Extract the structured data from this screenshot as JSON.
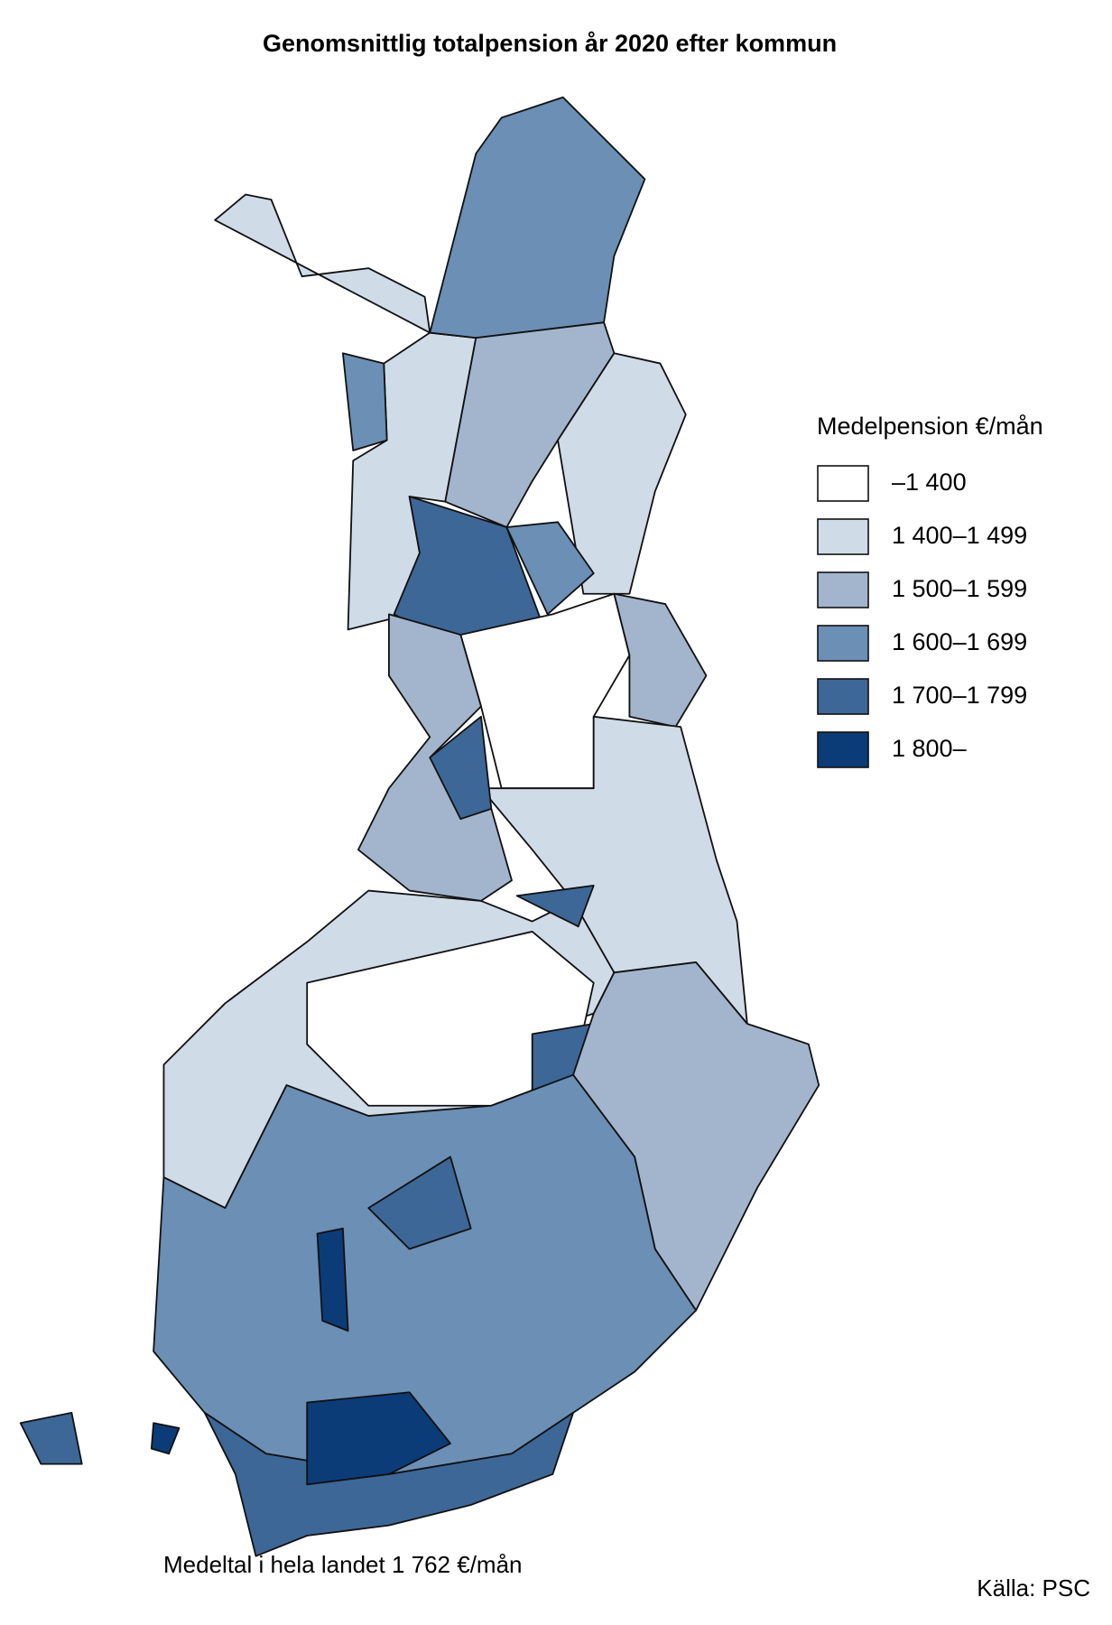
{
  "title": "Genomsnittlig totalpension år 2020 efter kommun",
  "legend": {
    "title": "Medelpension €/mån",
    "items": [
      {
        "label": "–1 400",
        "color": "#ffffff"
      },
      {
        "label": "1 400–1 499",
        "color": "#d0dbe8"
      },
      {
        "label": "1 500–1 599",
        "color": "#a2b5cd"
      },
      {
        "label": "1 600–1 699",
        "color": "#6b8fb5"
      },
      {
        "label": "1 700–1 799",
        "color": "#3d6796"
      },
      {
        "label": "1 800–",
        "color": "#0b3c78"
      }
    ]
  },
  "footnote": "Medeltal i hela landet 1 762 €/mån",
  "source": "Källa: PSC"
}
